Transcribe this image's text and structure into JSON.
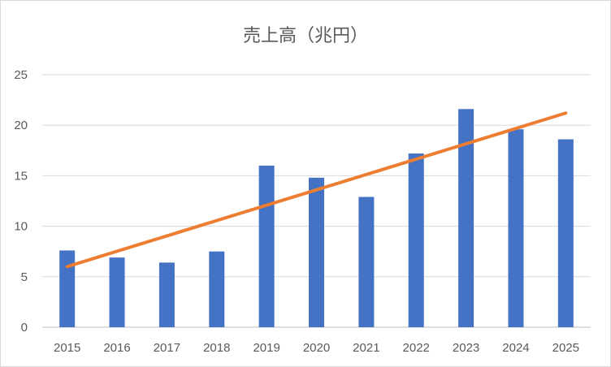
{
  "chart_data": {
    "type": "bar",
    "title": "売上高（兆円）",
    "categories": [
      "2015",
      "2016",
      "2017",
      "2018",
      "2019",
      "2020",
      "2021",
      "2022",
      "2023",
      "2024",
      "2025"
    ],
    "series": [
      {
        "values": [
          7.6,
          6.9,
          6.4,
          7.5,
          16.0,
          14.8,
          12.9,
          17.2,
          21.6,
          19.6,
          18.6
        ],
        "color": "#4472C4"
      }
    ],
    "trendline": {
      "type": "linear",
      "start": 6.0,
      "end": 21.2,
      "color": "#ED7D31"
    },
    "ylim": [
      0,
      25
    ],
    "yticks": [
      0,
      5,
      10,
      15,
      20,
      25
    ],
    "grid": true,
    "legend": "none"
  }
}
